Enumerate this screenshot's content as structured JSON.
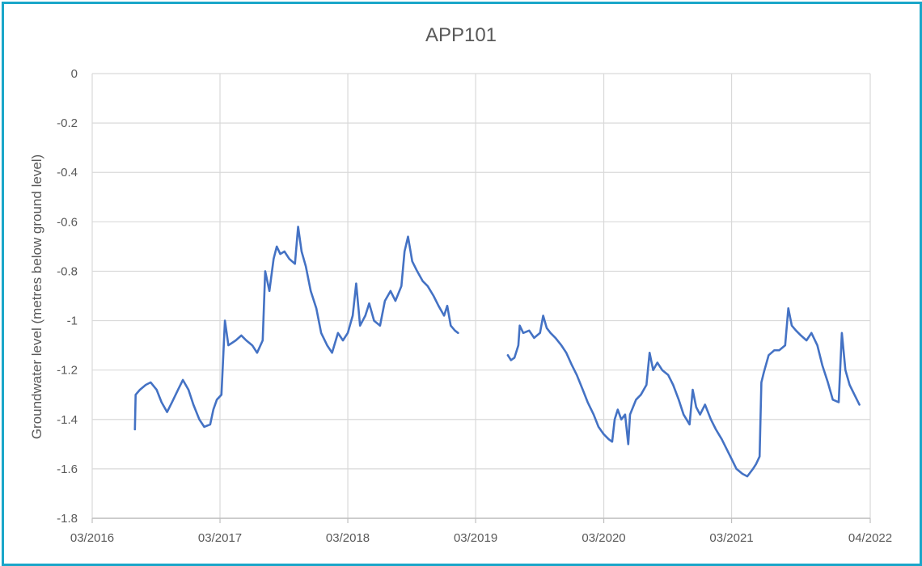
{
  "chart_data": {
    "type": "line",
    "title": "APP101",
    "xlabel": "",
    "ylabel": "Groundwater level (metres below ground level)",
    "x_ticks": [
      "03/2016",
      "03/2017",
      "03/2018",
      "03/2019",
      "03/2020",
      "03/2021",
      "04/2022"
    ],
    "y_ticks": [
      "0",
      "-0.2",
      "-0.4",
      "-0.6",
      "-0.8",
      "-1",
      "-1.2",
      "-1.4",
      "-1.6",
      "-1.8"
    ],
    "xlim": [
      "2016-03-01",
      "2022-04-01"
    ],
    "ylim": [
      -1.8,
      0
    ],
    "grid": true,
    "legend": "none",
    "color": "#4472c4",
    "series": [
      {
        "segments": [
          [
            [
              "2016-07-01",
              -1.44
            ],
            [
              "2016-07-03",
              -1.3
            ],
            [
              "2016-07-15",
              -1.28
            ],
            [
              "2016-08-01",
              -1.26
            ],
            [
              "2016-08-15",
              -1.25
            ],
            [
              "2016-09-01",
              -1.28
            ],
            [
              "2016-09-15",
              -1.33
            ],
            [
              "2016-10-01",
              -1.37
            ],
            [
              "2016-10-15",
              -1.33
            ],
            [
              "2016-11-01",
              -1.28
            ],
            [
              "2016-11-15",
              -1.24
            ],
            [
              "2016-12-01",
              -1.28
            ],
            [
              "2016-12-15",
              -1.34
            ],
            [
              "2017-01-01",
              -1.4
            ],
            [
              "2017-01-15",
              -1.43
            ],
            [
              "2017-02-01",
              -1.42
            ],
            [
              "2017-02-10",
              -1.36
            ],
            [
              "2017-02-20",
              -1.32
            ],
            [
              "2017-03-05",
              -1.3
            ],
            [
              "2017-03-15",
              -1.0
            ],
            [
              "2017-03-25",
              -1.1
            ],
            [
              "2017-04-15",
              -1.08
            ],
            [
              "2017-05-01",
              -1.06
            ],
            [
              "2017-05-15",
              -1.08
            ],
            [
              "2017-06-01",
              -1.1
            ],
            [
              "2017-06-15",
              -1.13
            ],
            [
              "2017-07-01",
              -1.08
            ],
            [
              "2017-07-08",
              -0.8
            ],
            [
              "2017-07-20",
              -0.88
            ],
            [
              "2017-08-01",
              -0.75
            ],
            [
              "2017-08-10",
              -0.7
            ],
            [
              "2017-08-20",
              -0.73
            ],
            [
              "2017-09-01",
              -0.72
            ],
            [
              "2017-09-15",
              -0.75
            ],
            [
              "2017-10-01",
              -0.77
            ],
            [
              "2017-10-10",
              -0.62
            ],
            [
              "2017-10-20",
              -0.72
            ],
            [
              "2017-11-01",
              -0.78
            ],
            [
              "2017-11-15",
              -0.88
            ],
            [
              "2017-12-01",
              -0.95
            ],
            [
              "2017-12-15",
              -1.05
            ],
            [
              "2018-01-01",
              -1.1
            ],
            [
              "2018-01-15",
              -1.13
            ],
            [
              "2018-02-01",
              -1.05
            ],
            [
              "2018-02-15",
              -1.08
            ],
            [
              "2018-03-01",
              -1.05
            ],
            [
              "2018-03-15",
              -0.98
            ],
            [
              "2018-03-25",
              -0.85
            ],
            [
              "2018-04-05",
              -1.02
            ],
            [
              "2018-04-20",
              -0.98
            ],
            [
              "2018-05-01",
              -0.93
            ],
            [
              "2018-05-15",
              -1.0
            ],
            [
              "2018-06-01",
              -1.02
            ],
            [
              "2018-06-15",
              -0.92
            ],
            [
              "2018-07-01",
              -0.88
            ],
            [
              "2018-07-15",
              -0.92
            ],
            [
              "2018-08-01",
              -0.86
            ],
            [
              "2018-08-10",
              -0.72
            ],
            [
              "2018-08-20",
              -0.66
            ],
            [
              "2018-09-01",
              -0.76
            ],
            [
              "2018-09-15",
              -0.8
            ],
            [
              "2018-10-01",
              -0.84
            ],
            [
              "2018-10-15",
              -0.86
            ],
            [
              "2018-11-01",
              -0.9
            ],
            [
              "2018-11-15",
              -0.94
            ],
            [
              "2018-12-01",
              -0.98
            ],
            [
              "2018-12-10",
              -0.94
            ],
            [
              "2018-12-20",
              -1.02
            ],
            [
              "2019-01-01",
              -1.04
            ],
            [
              "2019-01-10",
              -1.05
            ]
          ],
          [
            [
              "2019-06-01",
              -1.14
            ],
            [
              "2019-06-10",
              -1.16
            ],
            [
              "2019-06-20",
              -1.15
            ],
            [
              "2019-07-01",
              -1.1
            ],
            [
              "2019-07-05",
              -1.02
            ],
            [
              "2019-07-15",
              -1.05
            ],
            [
              "2019-08-01",
              -1.04
            ],
            [
              "2019-08-15",
              -1.07
            ],
            [
              "2019-09-01",
              -1.05
            ],
            [
              "2019-09-10",
              -0.98
            ],
            [
              "2019-09-20",
              -1.03
            ],
            [
              "2019-10-01",
              -1.05
            ],
            [
              "2019-10-15",
              -1.07
            ],
            [
              "2019-11-01",
              -1.1
            ],
            [
              "2019-11-15",
              -1.13
            ],
            [
              "2019-12-01",
              -1.18
            ],
            [
              "2019-12-15",
              -1.22
            ],
            [
              "2020-01-01",
              -1.28
            ],
            [
              "2020-01-15",
              -1.33
            ],
            [
              "2020-02-01",
              -1.38
            ],
            [
              "2020-02-15",
              -1.43
            ],
            [
              "2020-03-01",
              -1.46
            ],
            [
              "2020-03-15",
              -1.48
            ],
            [
              "2020-03-25",
              -1.49
            ],
            [
              "2020-04-01",
              -1.4
            ],
            [
              "2020-04-10",
              -1.36
            ],
            [
              "2020-04-20",
              -1.4
            ],
            [
              "2020-05-01",
              -1.38
            ],
            [
              "2020-05-10",
              -1.5
            ],
            [
              "2020-05-15",
              -1.38
            ],
            [
              "2020-06-01",
              -1.32
            ],
            [
              "2020-06-15",
              -1.3
            ],
            [
              "2020-07-01",
              -1.26
            ],
            [
              "2020-07-10",
              -1.13
            ],
            [
              "2020-07-20",
              -1.2
            ],
            [
              "2020-08-01",
              -1.17
            ],
            [
              "2020-08-15",
              -1.2
            ],
            [
              "2020-09-01",
              -1.22
            ],
            [
              "2020-09-15",
              -1.26
            ],
            [
              "2020-10-01",
              -1.32
            ],
            [
              "2020-10-15",
              -1.38
            ],
            [
              "2020-11-01",
              -1.42
            ],
            [
              "2020-11-10",
              -1.28
            ],
            [
              "2020-11-20",
              -1.35
            ],
            [
              "2020-12-01",
              -1.38
            ],
            [
              "2020-12-15",
              -1.34
            ],
            [
              "2021-01-01",
              -1.4
            ],
            [
              "2021-01-15",
              -1.44
            ],
            [
              "2021-02-01",
              -1.48
            ],
            [
              "2021-02-15",
              -1.52
            ],
            [
              "2021-03-01",
              -1.56
            ],
            [
              "2021-03-15",
              -1.6
            ],
            [
              "2021-04-01",
              -1.62
            ],
            [
              "2021-04-15",
              -1.63
            ],
            [
              "2021-05-01",
              -1.6
            ],
            [
              "2021-05-10",
              -1.58
            ],
            [
              "2021-05-20",
              -1.55
            ],
            [
              "2021-05-25",
              -1.25
            ],
            [
              "2021-06-01",
              -1.21
            ],
            [
              "2021-06-15",
              -1.14
            ],
            [
              "2021-07-01",
              -1.12
            ],
            [
              "2021-07-15",
              -1.12
            ],
            [
              "2021-08-01",
              -1.1
            ],
            [
              "2021-08-10",
              -0.95
            ],
            [
              "2021-08-20",
              -1.02
            ],
            [
              "2021-09-01",
              -1.04
            ],
            [
              "2021-09-15",
              -1.06
            ],
            [
              "2021-10-01",
              -1.08
            ],
            [
              "2021-10-15",
              -1.05
            ],
            [
              "2021-11-01",
              -1.1
            ],
            [
              "2021-11-15",
              -1.18
            ],
            [
              "2021-12-01",
              -1.25
            ],
            [
              "2021-12-15",
              -1.32
            ],
            [
              "2022-01-01",
              -1.33
            ],
            [
              "2022-01-10",
              -1.05
            ],
            [
              "2022-01-20",
              -1.2
            ],
            [
              "2022-02-01",
              -1.26
            ],
            [
              "2022-02-15",
              -1.3
            ],
            [
              "2022-03-01",
              -1.34
            ]
          ]
        ]
      }
    ]
  }
}
